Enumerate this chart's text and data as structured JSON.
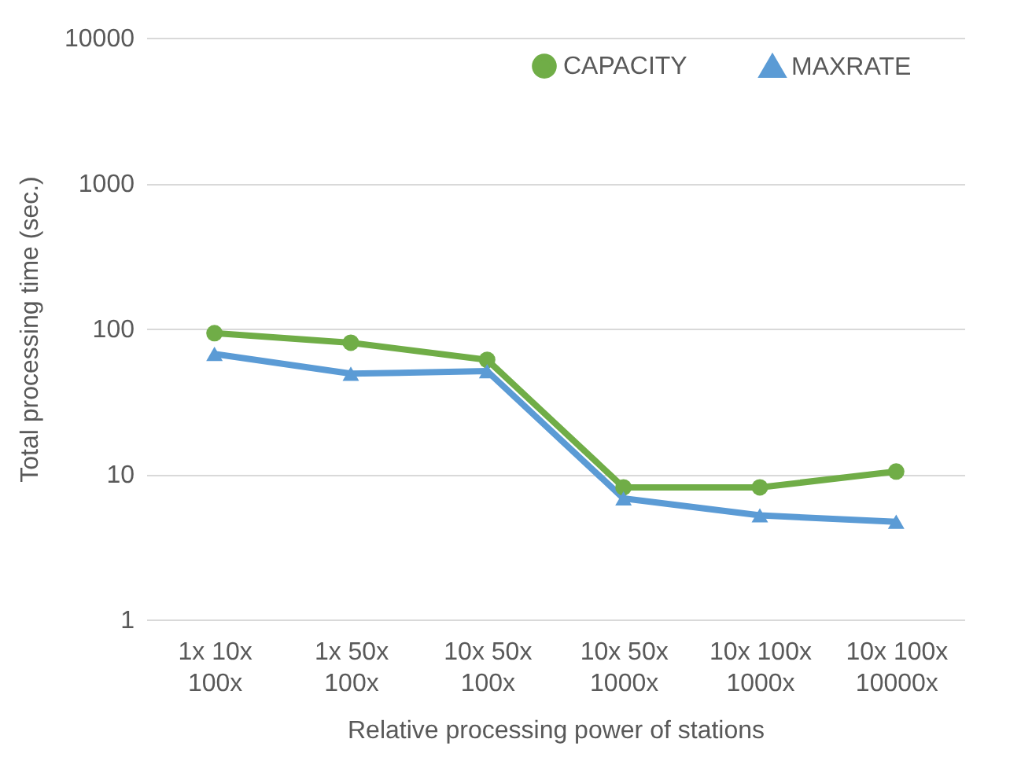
{
  "chart_data": {
    "type": "line",
    "xlabel": "Relative processing power of stations",
    "ylabel": "Total processing time (sec.)",
    "categories": [
      "1x 10x 100x",
      "1x 50x 100x",
      "10x 50x 100x",
      "10x 50x 1000x",
      "10x 100x 1000x",
      "10x 100x 10000x"
    ],
    "series": [
      {
        "name": "CAPACITY",
        "color": "#70ad47",
        "marker": "circle",
        "values": [
          93,
          80,
          61,
          8.1,
          8.1,
          10.4
        ]
      },
      {
        "name": "MAXRATE",
        "color": "#5b9bd5",
        "marker": "triangle",
        "values": [
          67,
          49,
          51,
          6.8,
          5.2,
          4.7
        ]
      }
    ],
    "log": true,
    "ylim": [
      1,
      10000
    ],
    "yticks": [
      1,
      10,
      100,
      1000,
      10000
    ],
    "grid": "y",
    "legend": "top",
    "line_style": "solid"
  }
}
